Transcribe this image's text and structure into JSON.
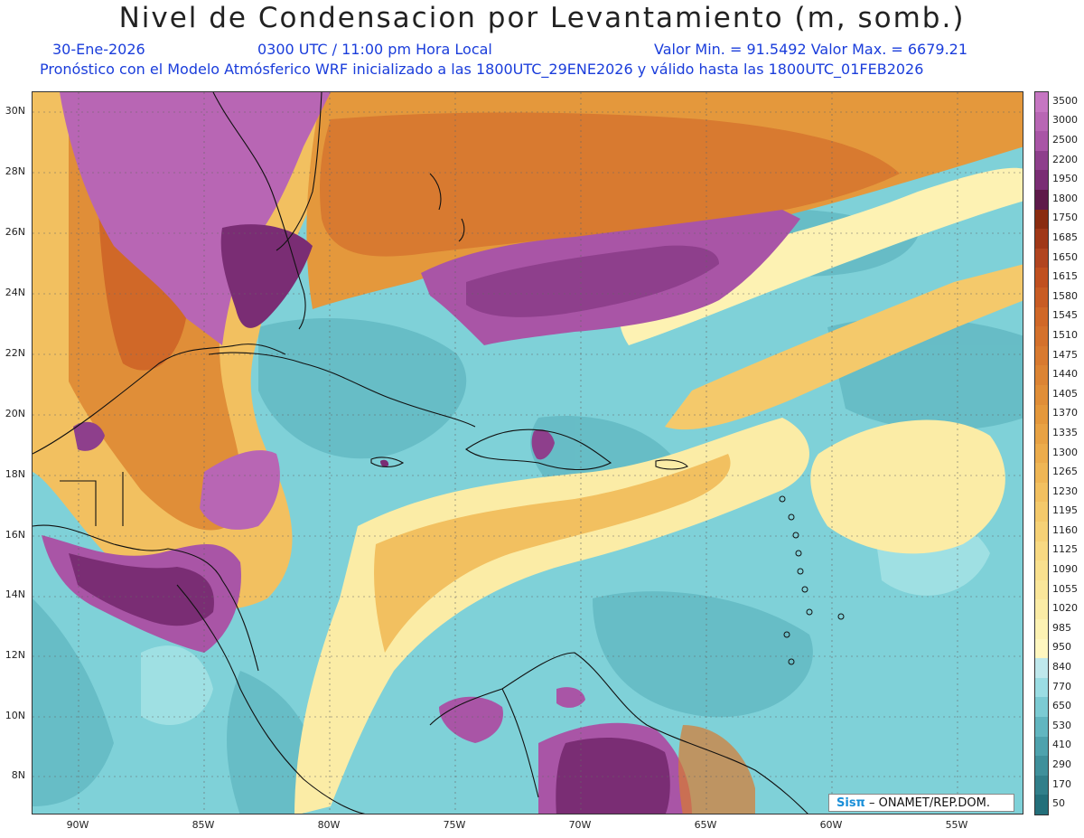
{
  "title": "Nivel de Condensacion por Levantamiento (m, somb.)",
  "info": {
    "date": "30-Ene-2026",
    "time": "0300 UTC / 11:00 pm Hora Local",
    "minmax": "Valor Min. = 91.5492  Valor Max. = 6679.21",
    "forecast": "Pronóstico con el Modelo Atmósferico WRF inicializado a las 1800UTC_29ENE2026 y válido hasta las  1800UTC_01FEB2026"
  },
  "axes": {
    "lat_labels": [
      "30N",
      "28N",
      "26N",
      "24N",
      "22N",
      "20N",
      "18N",
      "16N",
      "14N",
      "12N",
      "10N",
      "8N"
    ],
    "lon_labels": [
      "90W",
      "85W",
      "80W",
      "75W",
      "70W",
      "65W",
      "60W",
      "55W"
    ]
  },
  "colorbar": {
    "labels": [
      "3500",
      "3000",
      "2500",
      "2200",
      "1950",
      "1800",
      "1750",
      "1685",
      "1650",
      "1615",
      "1580",
      "1545",
      "1510",
      "1475",
      "1440",
      "1405",
      "1370",
      "1335",
      "1300",
      "1265",
      "1230",
      "1195",
      "1160",
      "1125",
      "1090",
      "1055",
      "1020",
      "985",
      "950",
      "840",
      "770",
      "650",
      "530",
      "410",
      "290",
      "170",
      "50"
    ],
    "colors": [
      "#c676c2",
      "#b866b4",
      "#a955a6",
      "#8e3f8c",
      "#7a2d74",
      "#5e1a4a",
      "#8a2c10",
      "#a03818",
      "#b14520",
      "#c05020",
      "#c85c24",
      "#d06828",
      "#d4712c",
      "#d87a30",
      "#dc8434",
      "#e08e38",
      "#e4983c",
      "#e8a244",
      "#ecac4c",
      "#efb655",
      "#f2c060",
      "#f4c96b",
      "#f6d176",
      "#f8d982",
      "#f9e08e",
      "#faE69a",
      "#fbeca6",
      "#fdf2b3",
      "#fff7c0",
      "#bfe8ec",
      "#9bdde3",
      "#7ccbd3",
      "#62b6c0",
      "#4ea2ad",
      "#3f909b",
      "#317f8a",
      "#236f7a"
    ]
  },
  "credit": {
    "logo": "Sisπ",
    "text": " – ONAMET/REP.DOM."
  }
}
